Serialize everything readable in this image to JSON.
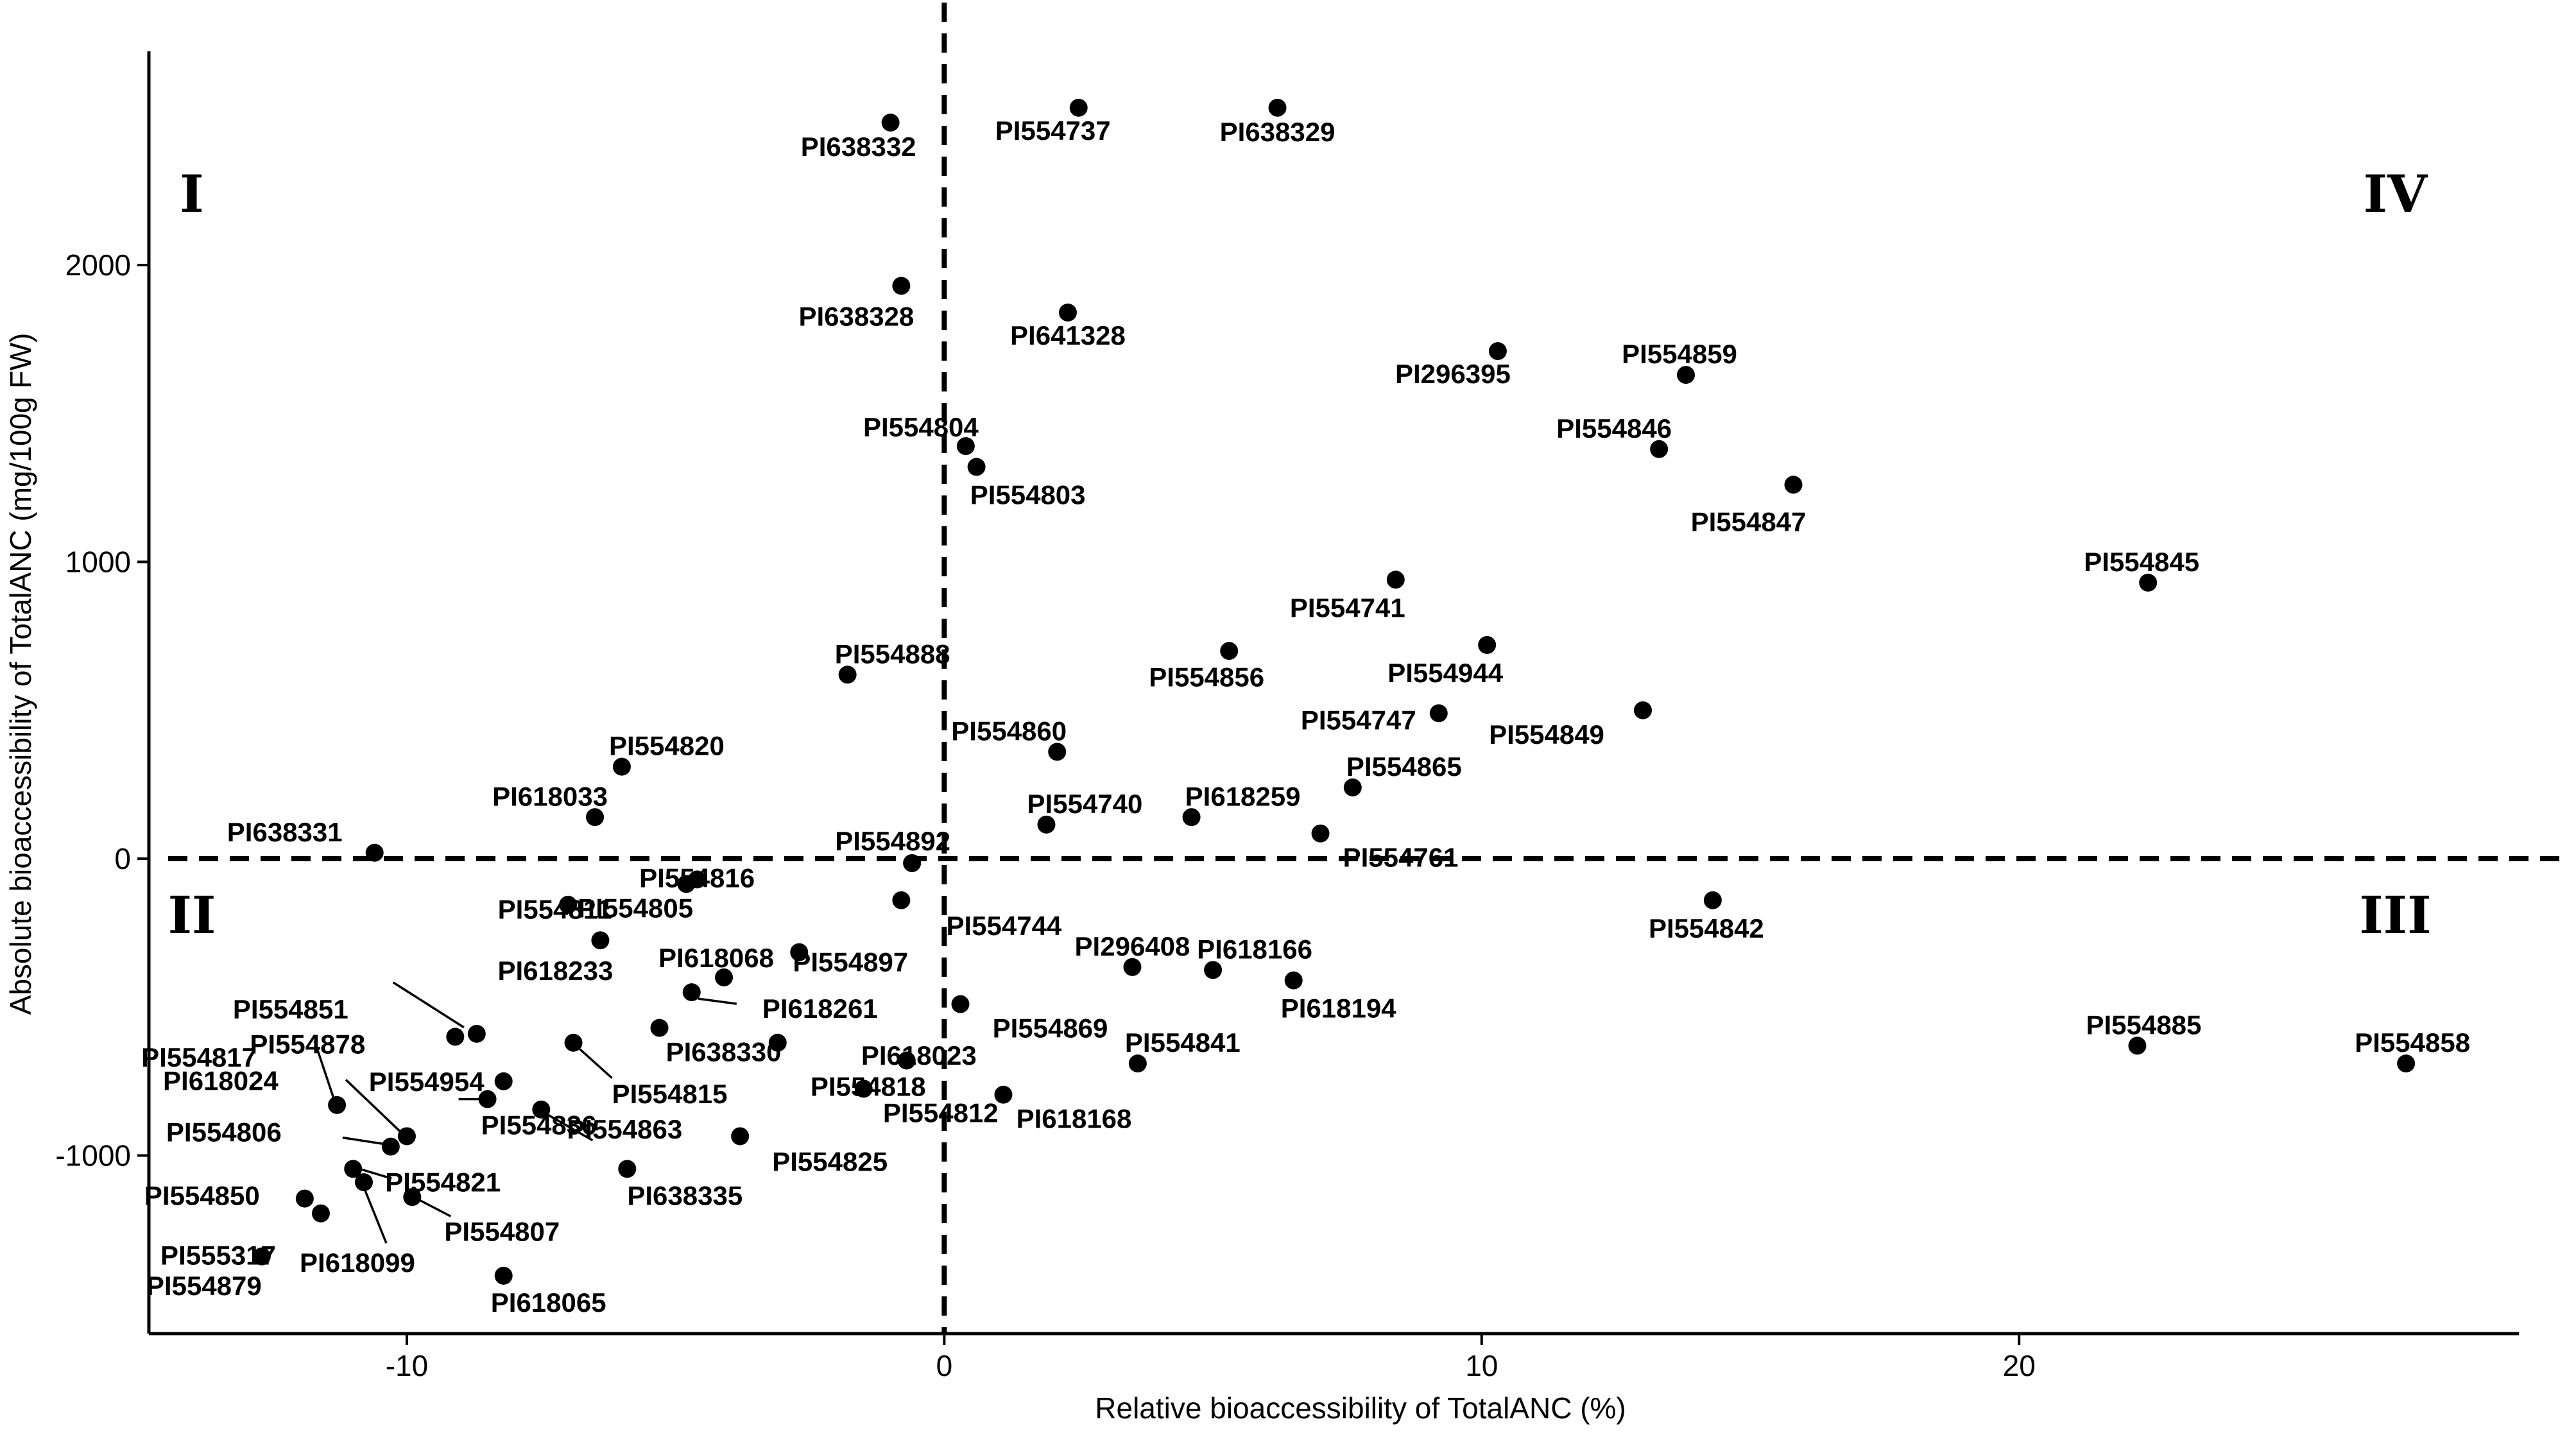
{
  "chart_data": {
    "type": "scatter",
    "xlabel": "Relative bioaccessibility of TotalANC (%)",
    "ylabel": "Absolute bioaccessibility of TotalANC (mg/100g FW)",
    "xlim": [
      -14.8,
      29.3
    ],
    "ylim": [
      -1600,
      2720
    ],
    "x_ticks": [
      -10,
      0,
      10,
      20
    ],
    "y_ticks": [
      -1000,
      0,
      1000,
      2000
    ],
    "reference_lines": {
      "x": 0,
      "y": 0,
      "style": "dashed"
    },
    "grid": false,
    "legend": "none",
    "quadrants": [
      {
        "label": "I",
        "x": -14,
        "y": 2240
      },
      {
        "label": "IV",
        "x": 27,
        "y": 2240
      },
      {
        "label": "II",
        "x": -14,
        "y": -190
      },
      {
        "label": "III",
        "x": 27,
        "y": -190
      }
    ],
    "points": [
      {
        "name": "PI638332",
        "x": -1.0,
        "y": 2480
      },
      {
        "name": "PI554737",
        "x": 2.5,
        "y": 2530
      },
      {
        "name": "PI638329",
        "x": 6.2,
        "y": 2530
      },
      {
        "name": "PI638328",
        "x": -0.8,
        "y": 1930
      },
      {
        "name": "PI641328",
        "x": 2.3,
        "y": 1840
      },
      {
        "name": "PI296395",
        "x": 10.3,
        "y": 1710
      },
      {
        "name": "PI554859",
        "x": 13.8,
        "y": 1630
      },
      {
        "name": "PI554846",
        "x": 13.3,
        "y": 1380
      },
      {
        "name": "PI554847",
        "x": 15.8,
        "y": 1260
      },
      {
        "name": "PI554804",
        "x": 0.4,
        "y": 1390
      },
      {
        "name": "PI554803",
        "x": 0.6,
        "y": 1320
      },
      {
        "name": "PI554845",
        "x": 22.4,
        "y": 930
      },
      {
        "name": "PI554741",
        "x": 8.4,
        "y": 940
      },
      {
        "name": "PI554944",
        "x": 10.1,
        "y": 720
      },
      {
        "name": "PI554856",
        "x": 5.3,
        "y": 700
      },
      {
        "name": "PI554888",
        "x": -1.8,
        "y": 620
      },
      {
        "name": "PI554747",
        "x": 9.2,
        "y": 490
      },
      {
        "name": "PI554849",
        "x": 13.0,
        "y": 500
      },
      {
        "name": "PI554860",
        "x": 2.1,
        "y": 360
      },
      {
        "name": "PI554820",
        "x": -6.0,
        "y": 310
      },
      {
        "name": "PI554865",
        "x": 7.6,
        "y": 240
      },
      {
        "name": "PI618259",
        "x": 4.6,
        "y": 140
      },
      {
        "name": "PI618033",
        "x": -6.5,
        "y": 140
      },
      {
        "name": "PI554740",
        "x": 1.9,
        "y": 115
      },
      {
        "name": "PI554761",
        "x": 7.0,
        "y": 85
      },
      {
        "name": "PI638331",
        "x": -10.6,
        "y": 20
      },
      {
        "name": "PI554892",
        "x": -0.6,
        "y": -15
      },
      {
        "name": "PI554816",
        "x": -4.6,
        "y": -70
      },
      {
        "name": "PI554811",
        "x": -4.8,
        "y": -85
      },
      {
        "name": "PI554744",
        "x": -0.8,
        "y": -140
      },
      {
        "name": "PI554805",
        "x": -7.0,
        "y": -155
      },
      {
        "name": "PI554842",
        "x": 14.3,
        "y": -140
      },
      {
        "name": "PI554897",
        "x": -2.7,
        "y": -315
      },
      {
        "name": "PI618233",
        "x": -6.4,
        "y": -275
      },
      {
        "name": "PI296408",
        "x": 3.5,
        "y": -365
      },
      {
        "name": "PI618166",
        "x": 5.0,
        "y": -375
      },
      {
        "name": "PI618068",
        "x": -4.1,
        "y": -400
      },
      {
        "name": "PI618194",
        "x": 6.5,
        "y": -410
      },
      {
        "name": "PI618261",
        "x": -4.7,
        "y": -450
      },
      {
        "name": "PI554869",
        "x": 0.3,
        "y": -490
      },
      {
        "name": "PI554851",
        "x": -8.7,
        "y": -590
      },
      {
        "name": "PI554878",
        "x": -9.1,
        "y": -600
      },
      {
        "name": "PI638330",
        "x": -5.3,
        "y": -570
      },
      {
        "name": "PI618023",
        "x": -3.1,
        "y": -620
      },
      {
        "name": "PI554815",
        "x": -6.9,
        "y": -620
      },
      {
        "name": "PI554818",
        "x": -0.7,
        "y": -680
      },
      {
        "name": "PI554841",
        "x": 3.6,
        "y": -690
      },
      {
        "name": "PI554885",
        "x": 22.2,
        "y": -630
      },
      {
        "name": "PI554858",
        "x": 27.2,
        "y": -690
      },
      {
        "name": "PI554954",
        "x": -8.2,
        "y": -750
      },
      {
        "name": "PI554812",
        "x": -1.5,
        "y": -775
      },
      {
        "name": "PI618168",
        "x": 1.1,
        "y": -795
      },
      {
        "name": "PI554836",
        "x": -8.5,
        "y": -810
      },
      {
        "name": "PI554817",
        "x": -11.3,
        "y": -830
      },
      {
        "name": "PI554863",
        "x": -7.5,
        "y": -845
      },
      {
        "name": "PI554825",
        "x": -3.8,
        "y": -935
      },
      {
        "name": "PI618024",
        "x": -10.0,
        "y": -935
      },
      {
        "name": "PI554806",
        "x": -10.3,
        "y": -970
      },
      {
        "name": "PI554821",
        "x": -11.0,
        "y": -1045
      },
      {
        "name": "PI638335",
        "x": -5.9,
        "y": -1045
      },
      {
        "name": "PI618099",
        "x": -10.8,
        "y": -1090
      },
      {
        "name": "PI554807",
        "x": -9.9,
        "y": -1140
      },
      {
        "name": "PI554850",
        "x": -11.9,
        "y": -1145
      },
      {
        "name": "PI555317",
        "x": -11.6,
        "y": -1195
      },
      {
        "name": "PI554879",
        "x": -12.7,
        "y": -1340
      },
      {
        "name": "PI618065",
        "x": -8.2,
        "y": -1405
      }
    ]
  }
}
